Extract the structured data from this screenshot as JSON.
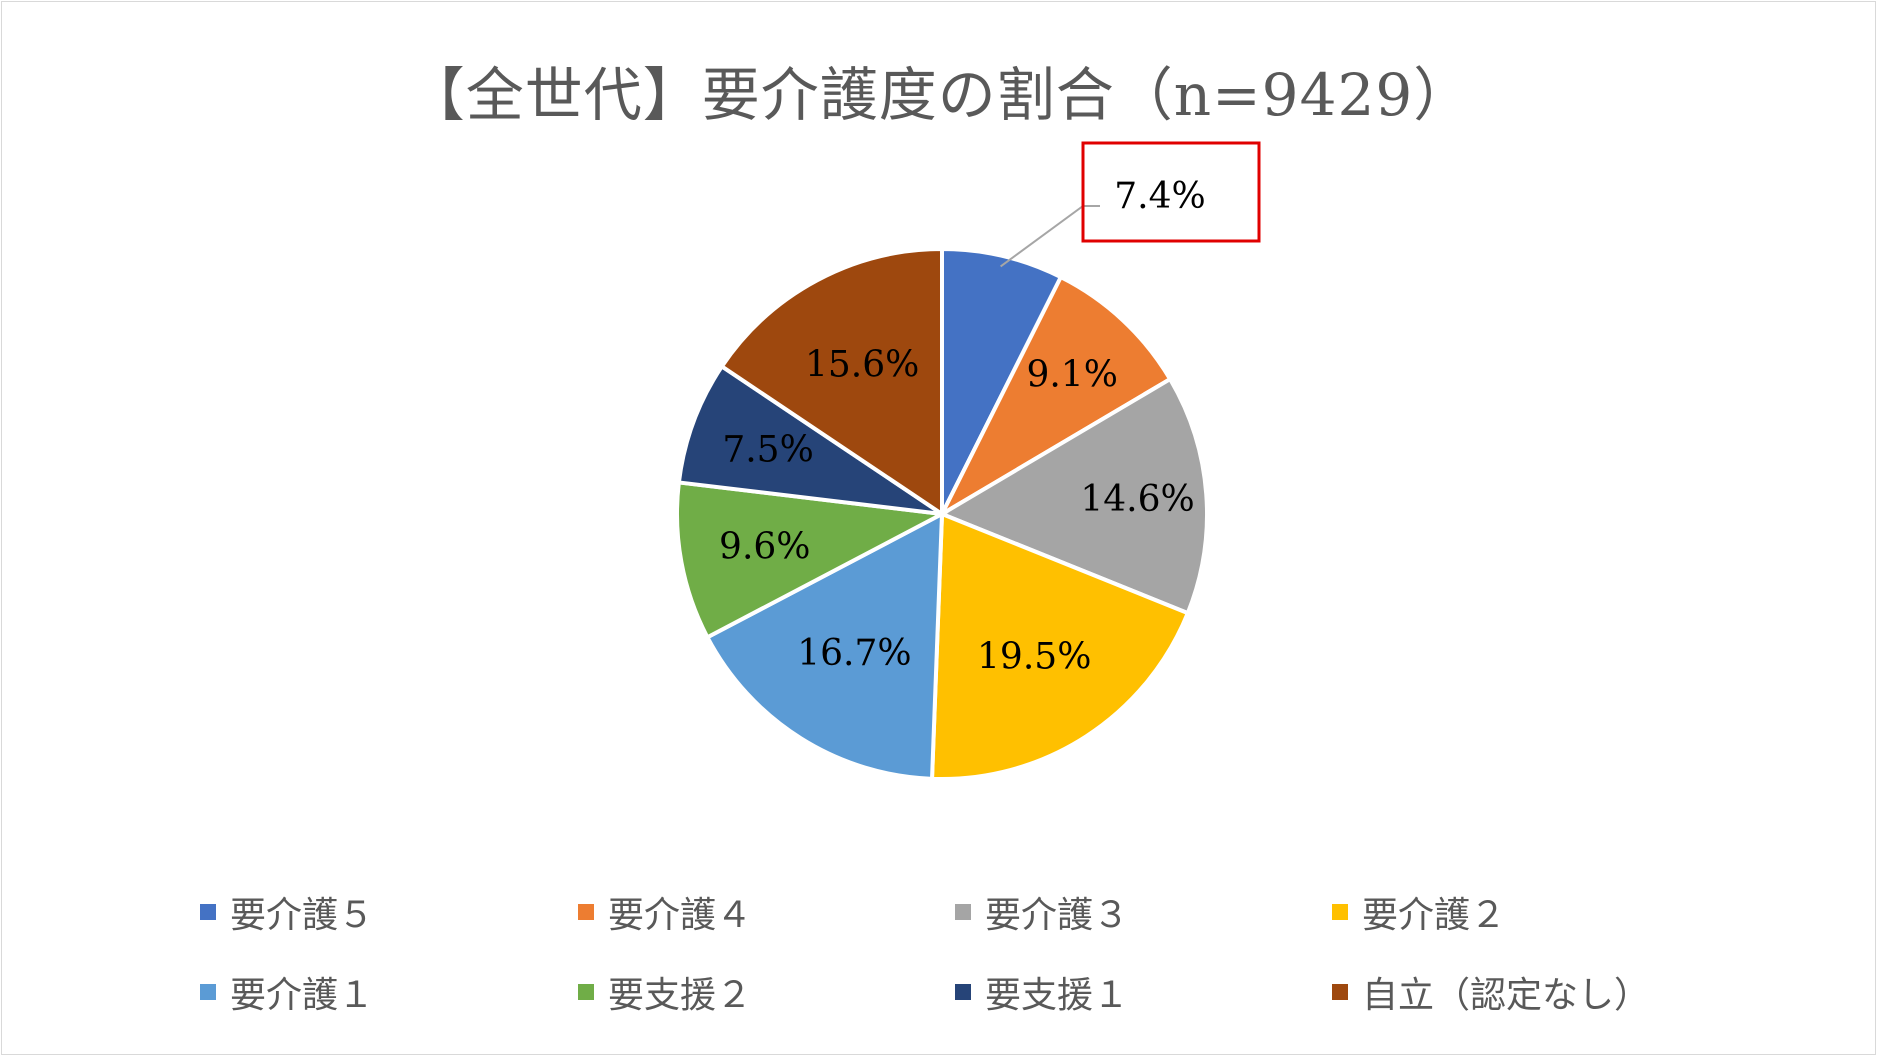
{
  "chart_data": {
    "type": "pie",
    "title": "【全世代】要介護度の割合（n=9429）",
    "categories": [
      "要介護５",
      "要介護４",
      "要介護３",
      "要介護２",
      "要介護１",
      "要支援２",
      "要支援１",
      "自立（認定なし）"
    ],
    "values": [
      7.4,
      9.1,
      14.6,
      19.5,
      16.7,
      9.6,
      7.5,
      15.6
    ],
    "labels": [
      "7.4%",
      "9.1%",
      "14.6%",
      "19.5%",
      "16.7%",
      "9.6%",
      "7.5%",
      "15.6%"
    ],
    "colors": [
      "#4472C4",
      "#ED7D31",
      "#A5A5A5",
      "#FFC000",
      "#5B9BD5",
      "#70AD47",
      "#264478",
      "#9E480E"
    ],
    "legend_position": "bottom",
    "highlighted_label": "7.4%",
    "highlight_color": "#E00000"
  }
}
